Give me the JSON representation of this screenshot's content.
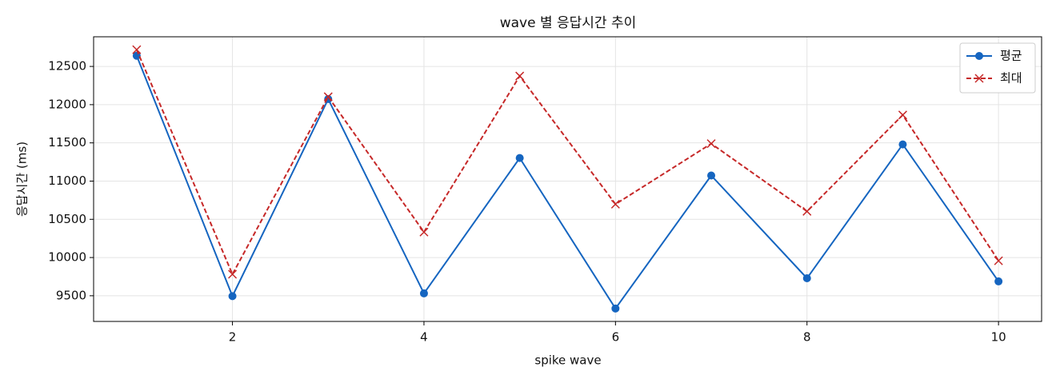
{
  "chart_data": {
    "type": "line",
    "title": "wave 별 응답시간 추이",
    "x_label": "spike wave",
    "y_label": "응답시간 (ms)",
    "x": [
      1,
      2,
      3,
      4,
      5,
      6,
      7,
      8,
      9,
      10
    ],
    "series": [
      {
        "name": "평균",
        "color": "#1565c0",
        "marker": "circle",
        "dash": false,
        "values": [
          12640,
          9495,
          12073,
          9531,
          11302,
          9333,
          11073,
          9729,
          11480,
          9688
        ]
      },
      {
        "name": "최대",
        "color": "#c62828",
        "marker": "x",
        "dash": true,
        "values": [
          12719,
          9781,
          12104,
          10333,
          12375,
          10698,
          11490,
          10604,
          11865,
          9958
        ]
      }
    ],
    "xlim": [
      0.55,
      10.45
    ],
    "xticks": [
      2,
      4,
      6,
      8,
      10
    ],
    "ylim": [
      9164,
      12888
    ],
    "yticks": [
      9500,
      10000,
      10500,
      11000,
      11500,
      12000,
      12500
    ],
    "grid": true,
    "legend": "upper right"
  }
}
